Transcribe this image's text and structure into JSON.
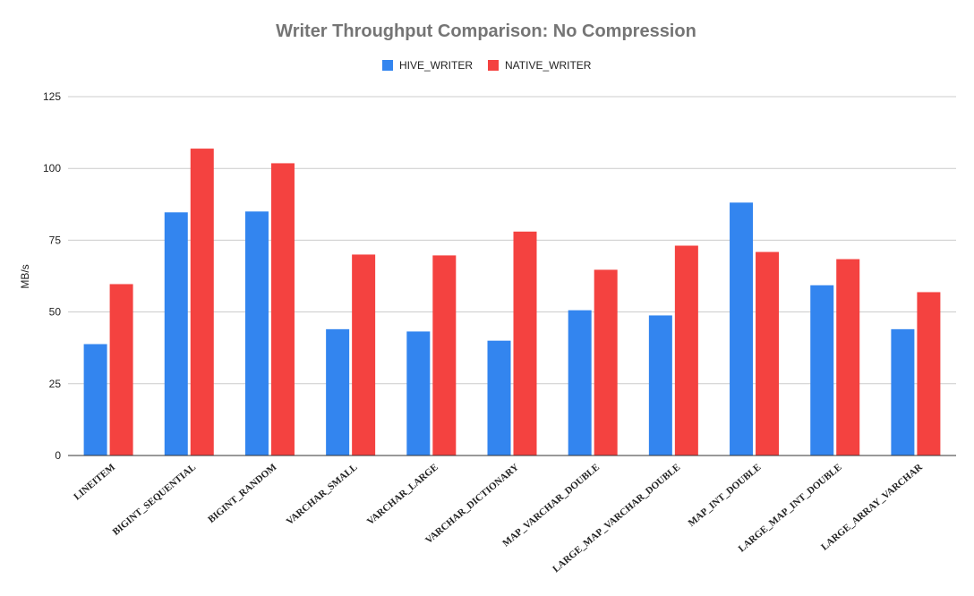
{
  "chart_data": {
    "type": "bar",
    "title": "Writer Throughput Comparison: No Compression",
    "xlabel": "",
    "ylabel": "MB/s",
    "ylim": [
      0,
      125
    ],
    "yticks": [
      0,
      25,
      50,
      75,
      100,
      125
    ],
    "grid": true,
    "legend_position": "top",
    "categories": [
      "LINEITEM",
      "BIGINT_SEQUENTIAL",
      "BIGINT_RANDOM",
      "VARCHAR_SMALL",
      "VARCHAR_LARGE",
      "VARCHAR_DICTIONARY",
      "MAP_VARCHAR_DOUBLE",
      "LARGE_MAP_VARCHAR_DOUBLE",
      "MAP_INT_DOUBLE",
      "LARGE_MAP_INT_DOUBLE",
      "LARGE_ARRAY_VARCHAR"
    ],
    "series": [
      {
        "name": "HIVE_WRITER",
        "color": "#3385ef",
        "values": [
          38.8,
          84.7,
          85.0,
          44.0,
          43.2,
          40.0,
          50.6,
          48.8,
          88.1,
          59.3,
          44.0
        ]
      },
      {
        "name": "NATIVE_WRITER",
        "color": "#f44240",
        "values": [
          59.7,
          106.9,
          101.8,
          70.0,
          69.7,
          78.0,
          64.7,
          73.1,
          70.9,
          68.4,
          56.9
        ]
      }
    ]
  }
}
